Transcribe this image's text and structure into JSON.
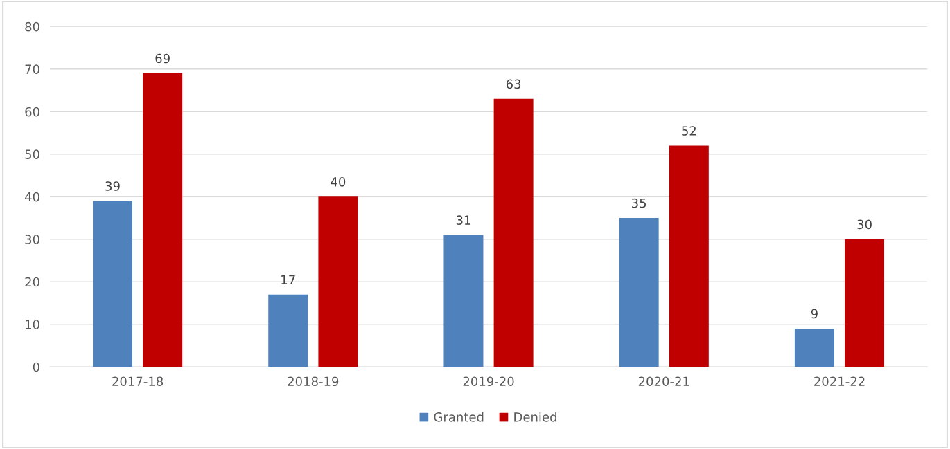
{
  "chart_data": {
    "type": "bar",
    "categories": [
      "2017-18",
      "2018-19",
      "2019-20",
      "2020-21",
      "2021-22"
    ],
    "series": [
      {
        "name": "Granted",
        "color": "#4f81bd",
        "values": [
          39,
          17,
          31,
          35,
          9
        ]
      },
      {
        "name": "Denied",
        "color": "#c00000",
        "values": [
          69,
          40,
          63,
          52,
          30
        ]
      }
    ],
    "ylim": [
      0,
      80
    ],
    "yticks": [
      0,
      10,
      20,
      30,
      40,
      50,
      60,
      70,
      80
    ],
    "grid": "y",
    "legend": "bottom",
    "data_labels": true
  }
}
